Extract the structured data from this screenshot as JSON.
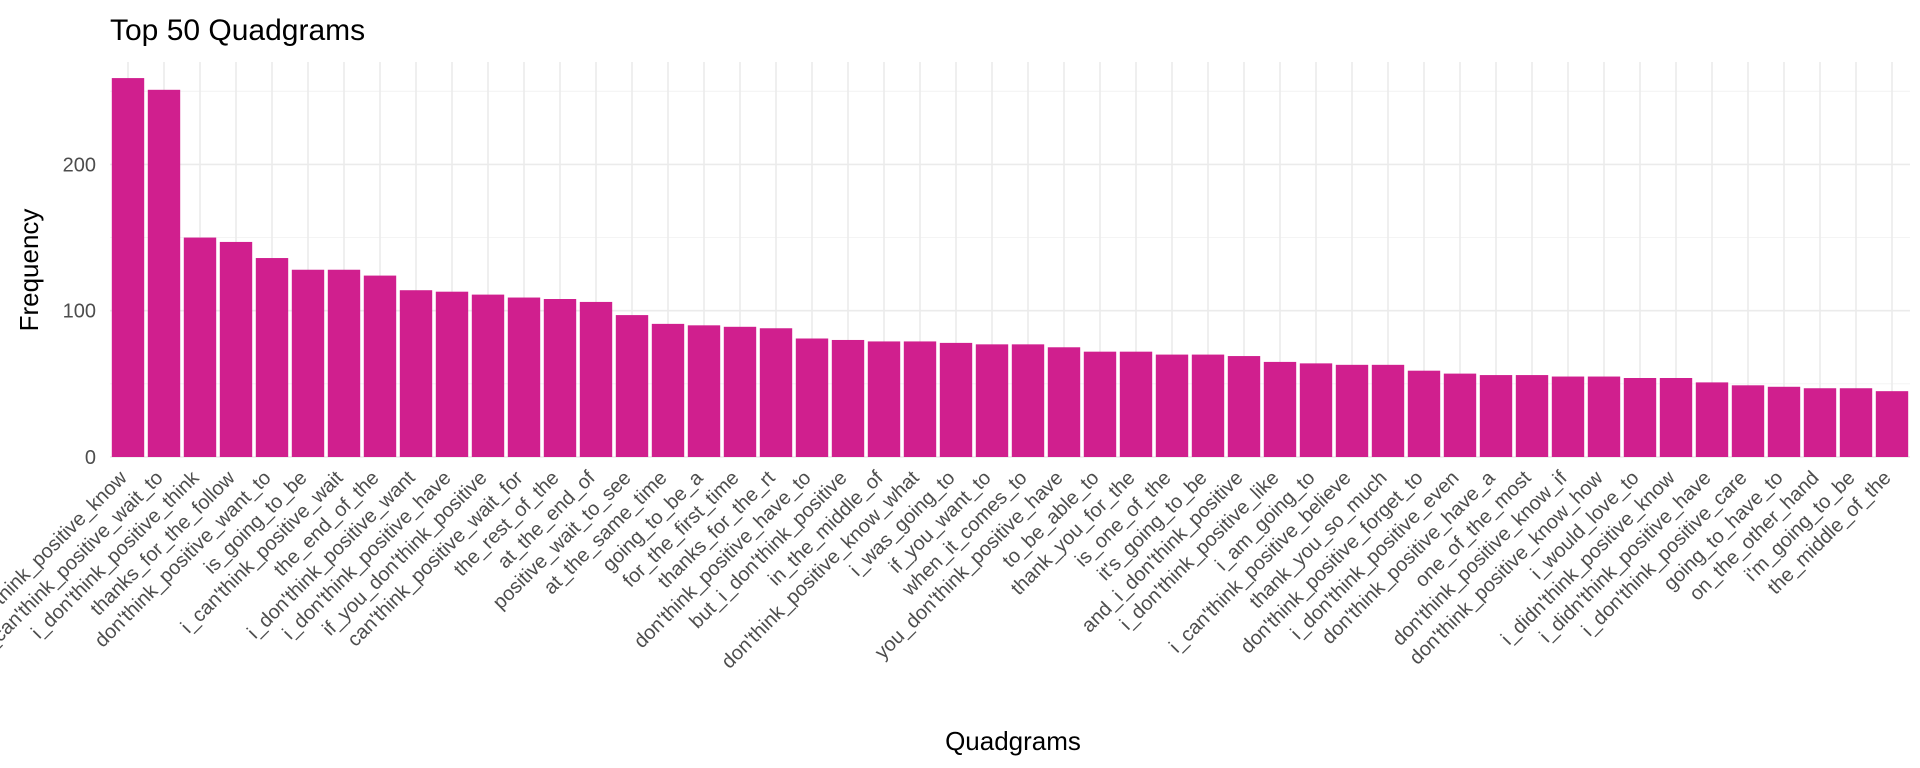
{
  "chart_data": {
    "type": "bar",
    "title": "Top 50 Quadgrams",
    "xlabel": "Quadgrams",
    "ylabel": "Frequency",
    "ylim": [
      0,
      270
    ],
    "yticks": [
      0,
      100,
      200
    ],
    "grid": true,
    "bar_color": "#d01f8e",
    "categories": [
      "i_don'think_positive_know",
      "i_can'think_positive_wait_to",
      "i_don'think_positive_think",
      "thanks_for_the_follow",
      "don'think_positive_want_to",
      "is_going_to_be",
      "i_can'think_positive_wait",
      "the_end_of_the",
      "i_don'think_positive_want",
      "i_don'think_positive_have",
      "if_you_don'think_positive",
      "can'think_positive_wait_for",
      "the_rest_of_the",
      "at_the_end_of",
      "positive_wait_to_see",
      "at_the_same_time",
      "going_to_be_a",
      "for_the_first_time",
      "thanks_for_the_rt",
      "don'think_positive_have_to",
      "but_i_don'think_positive",
      "in_the_middle_of",
      "don'think_positive_know_what",
      "i_was_going_to",
      "if_you_want_to",
      "when_it_comes_to",
      "you_don'think_positive_have",
      "to_be_able_to",
      "thank_you_for_the",
      "is_one_of_the",
      "it's_going_to_be",
      "and_i_don'think_positive",
      "i_don'think_positive_like",
      "i_am_going_to",
      "i_can'think_positive_believe",
      "thank_you_so_much",
      "don'think_positive_forget_to",
      "i_don'think_positive_even",
      "don'think_positive_have_a",
      "one_of_the_most",
      "don'think_positive_know_if",
      "don'think_positive_know_how",
      "i_would_love_to",
      "i_didn'think_positive_know",
      "i_didn'think_positive_have",
      "i_don'think_positive_care",
      "going_to_have_to",
      "on_the_other_hand",
      "i'm_going_to_be",
      "the_middle_of_the"
    ],
    "values": [
      259,
      251,
      150,
      147,
      136,
      128,
      128,
      124,
      114,
      113,
      111,
      109,
      108,
      106,
      97,
      91,
      90,
      89,
      88,
      81,
      80,
      79,
      79,
      78,
      77,
      77,
      75,
      72,
      72,
      70,
      70,
      69,
      65,
      64,
      63,
      63,
      59,
      57,
      56,
      56,
      55,
      55,
      54,
      54,
      51,
      49,
      48,
      47,
      47,
      45
    ]
  }
}
